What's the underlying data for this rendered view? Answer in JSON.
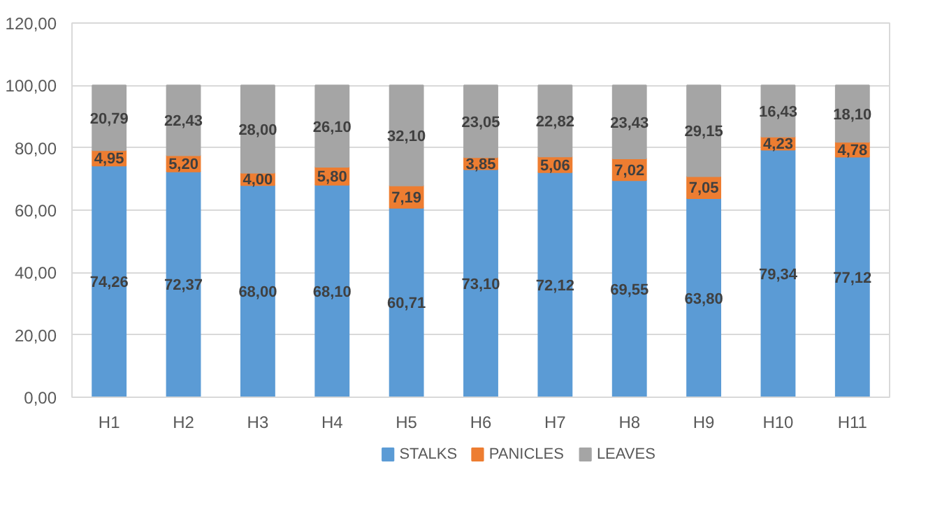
{
  "chart_data": {
    "type": "bar",
    "stacked": true,
    "categories": [
      "H1",
      "H2",
      "H3",
      "H4",
      "H5",
      "H6",
      "H7",
      "H8",
      "H9",
      "H10",
      "H11"
    ],
    "series": [
      {
        "name": "STALKS",
        "color": "#5b9bd5",
        "values": [
          74.26,
          72.37,
          68.0,
          68.1,
          60.71,
          73.1,
          72.12,
          69.55,
          63.8,
          79.34,
          77.12
        ],
        "value_labels": [
          "74,26",
          "72,37",
          "68,00",
          "68,10",
          "60,71",
          "73,10",
          "72,12",
          "69,55",
          "63,80",
          "79,34",
          "77,12"
        ]
      },
      {
        "name": "PANICLES",
        "color": "#ed7d31",
        "values": [
          4.95,
          5.2,
          4.0,
          5.8,
          7.19,
          3.85,
          5.06,
          7.02,
          7.05,
          4.23,
          4.78
        ],
        "value_labels": [
          "4,95",
          "5,20",
          "4,00",
          "5,80",
          "7,19",
          "3,85",
          "5,06",
          "7,02",
          "7,05",
          "4,23",
          "4,78"
        ]
      },
      {
        "name": "LEAVES",
        "color": "#a5a5a5",
        "values": [
          20.79,
          22.43,
          28.0,
          26.1,
          32.1,
          23.05,
          22.82,
          23.43,
          29.15,
          16.43,
          18.1
        ],
        "value_labels": [
          "20,79",
          "22,43",
          "28,00",
          "26,10",
          "32,10",
          "23,05",
          "22,82",
          "23,43",
          "29,15",
          "16,43",
          "18,10"
        ]
      }
    ],
    "ylim": [
      0,
      120
    ],
    "yticks": [
      {
        "value": 0,
        "label": "0,00"
      },
      {
        "value": 20,
        "label": "20,00"
      },
      {
        "value": 40,
        "label": "40,00"
      },
      {
        "value": 60,
        "label": "60,00"
      },
      {
        "value": 80,
        "label": "80,00"
      },
      {
        "value": 100,
        "label": "100,00"
      },
      {
        "value": 120,
        "label": "120,00"
      }
    ],
    "grid": "y",
    "legend": "bottom"
  }
}
